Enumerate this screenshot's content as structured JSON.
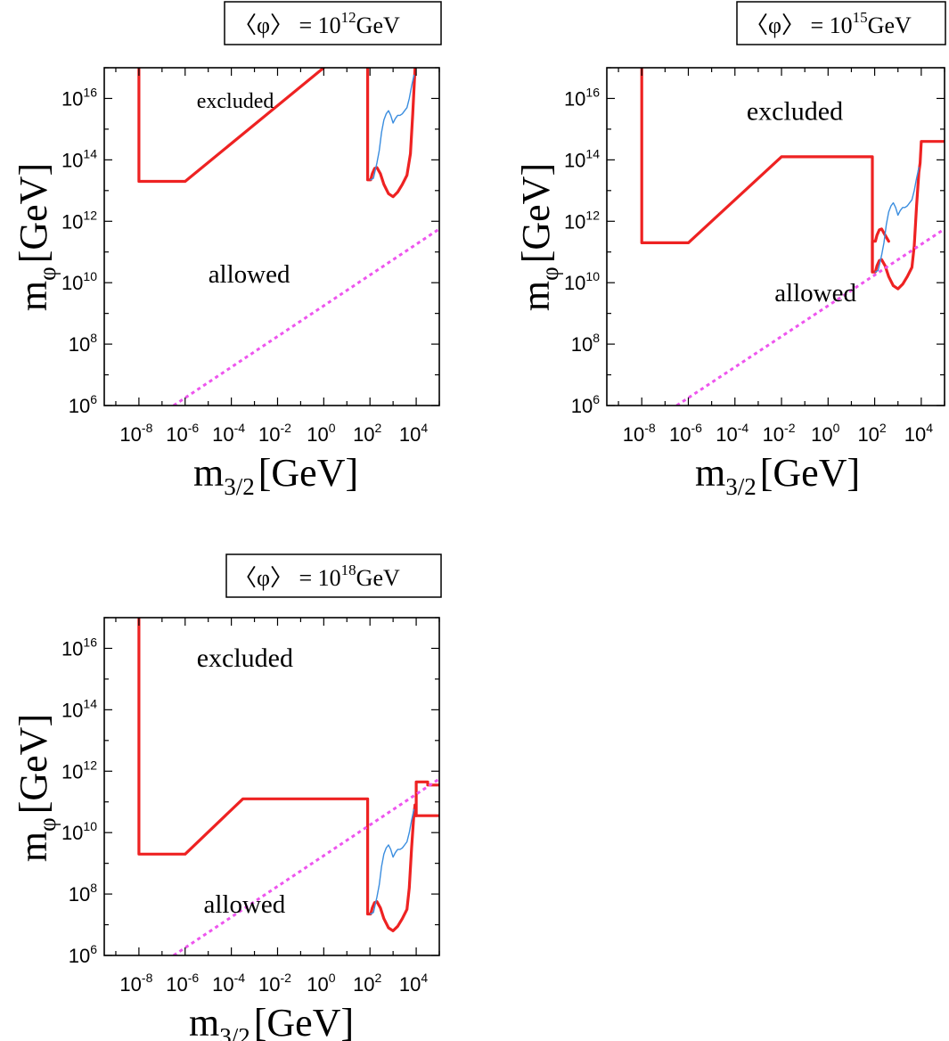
{
  "chart_data": [
    {
      "type": "line",
      "title": {
        "prefix": "〈φ〉 = 10",
        "exponent": "12",
        "suffix": "GeV"
      },
      "xlabel": {
        "main": "m",
        "sub": "3/2",
        "unit": "[GeV]"
      },
      "ylabel": {
        "main": "m",
        "sub": "φ",
        "unit": "[GeV]"
      },
      "x_scale": "log10",
      "y_scale": "log10",
      "xlim_log10": [
        -9.5,
        5
      ],
      "ylim_log10": [
        6,
        17
      ],
      "x_ticks_log10": [
        -8,
        -6,
        -4,
        -2,
        0,
        2,
        4
      ],
      "y_ticks_log10": [
        6,
        8,
        10,
        12,
        14,
        16
      ],
      "annotations": [
        {
          "text": "excluded",
          "at_log10": [
            -5.5,
            15.7
          ],
          "size": "small"
        },
        {
          "text": "allowed",
          "at_log10": [
            -5,
            10
          ]
        }
      ],
      "series": [
        {
          "style": "thick",
          "color": "#ee2222",
          "points_log10": [
            [
              -8,
              17
            ],
            [
              -8,
              13.3
            ],
            [
              -6,
              13.3
            ],
            [
              0,
              17
            ]
          ]
        },
        {
          "style": "thick",
          "color": "#ee2222",
          "points_log10": [
            [
              1.9,
              17
            ],
            [
              1.9,
              13.35
            ],
            [
              2.03,
              13.35
            ],
            [
              2.1,
              13.55
            ],
            [
              2.2,
              13.72
            ],
            [
              2.3,
              13.75
            ],
            [
              2.45,
              13.55
            ],
            [
              2.6,
              13.2
            ],
            [
              2.8,
              12.9
            ],
            [
              3,
              12.8
            ],
            [
              3.2,
              12.95
            ],
            [
              3.4,
              13.2
            ],
            [
              3.6,
              13.5
            ],
            [
              3.75,
              14.2
            ],
            [
              3.85,
              15.5
            ],
            [
              3.95,
              17
            ]
          ]
        },
        {
          "style": "thin",
          "color": "#3a8ddf",
          "points_log10": [
            [
              2.03,
              13.35
            ],
            [
              2.15,
              13.4
            ],
            [
              2.3,
              13.9
            ],
            [
              2.4,
              14.3
            ],
            [
              2.5,
              14.9
            ],
            [
              2.6,
              15.3
            ],
            [
              2.7,
              15.5
            ],
            [
              2.8,
              15.6
            ],
            [
              2.9,
              15.45
            ],
            [
              3.0,
              15.2
            ],
            [
              3.1,
              15.35
            ],
            [
              3.2,
              15.45
            ],
            [
              3.3,
              15.45
            ],
            [
              3.4,
              15.5
            ],
            [
              3.5,
              15.6
            ],
            [
              3.6,
              15.7
            ],
            [
              3.7,
              16.0
            ],
            [
              3.8,
              16.4
            ],
            [
              3.9,
              16.75
            ]
          ]
        },
        {
          "style": "dotted",
          "color": "#ee55ee",
          "points_log10": [
            [
              -6.5,
              6
            ],
            [
              5,
              11.75
            ]
          ]
        }
      ]
    },
    {
      "type": "line",
      "title": {
        "prefix": "〈φ〉 = 10",
        "exponent": "15",
        "suffix": "GeV"
      },
      "xlabel": {
        "main": "m",
        "sub": "3/2",
        "unit": "[GeV]"
      },
      "ylabel": {
        "main": "m",
        "sub": "φ",
        "unit": "[GeV]"
      },
      "x_scale": "log10",
      "y_scale": "log10",
      "xlim_log10": [
        -9.5,
        5
      ],
      "ylim_log10": [
        6,
        17
      ],
      "x_ticks_log10": [
        -8,
        -6,
        -4,
        -2,
        0,
        2,
        4
      ],
      "y_ticks_log10": [
        6,
        8,
        10,
        12,
        14,
        16
      ],
      "annotations": [
        {
          "text": "excluded",
          "at_log10": [
            -3.5,
            15.3
          ],
          "size": "large"
        },
        {
          "text": "allowed",
          "at_log10": [
            -2.3,
            9.4
          ],
          "size": "large"
        }
      ],
      "series": [
        {
          "style": "thick",
          "color": "#ee2222",
          "points_log10": [
            [
              -8,
              17
            ],
            [
              -8,
              11.3
            ],
            [
              -6,
              11.3
            ],
            [
              -2,
              14.1
            ],
            [
              1.9,
              14.1
            ],
            [
              1.9,
              10.35
            ],
            [
              2.03,
              10.35
            ],
            [
              2.1,
              10.55
            ],
            [
              2.2,
              10.72
            ],
            [
              2.3,
              10.75
            ],
            [
              2.45,
              10.55
            ],
            [
              2.6,
              10.2
            ],
            [
              2.8,
              9.9
            ],
            [
              3,
              9.8
            ],
            [
              3.2,
              9.95
            ],
            [
              3.4,
              10.2
            ],
            [
              3.6,
              10.5
            ],
            [
              3.7,
              11.2
            ],
            [
              3.8,
              12.5
            ],
            [
              3.9,
              13.6
            ],
            [
              3.95,
              13.9
            ],
            [
              4,
              14.6
            ],
            [
              5,
              14.6
            ]
          ]
        },
        {
          "style": "thick",
          "color": "#ee2222",
          "points_log10": [
            [
              1.9,
              10.35
            ],
            [
              1.9,
              11.35
            ],
            [
              2.03,
              11.35
            ],
            [
              2.1,
              11.55
            ],
            [
              2.2,
              11.72
            ],
            [
              2.3,
              11.75
            ],
            [
              2.45,
              11.55
            ],
            [
              2.6,
              11.35
            ]
          ]
        },
        {
          "style": "thin",
          "color": "#3a8ddf",
          "points_log10": [
            [
              2.03,
              10.35
            ],
            [
              2.15,
              10.4
            ],
            [
              2.3,
              10.9
            ],
            [
              2.4,
              11.3
            ],
            [
              2.5,
              11.9
            ],
            [
              2.6,
              12.3
            ],
            [
              2.7,
              12.5
            ],
            [
              2.8,
              12.6
            ],
            [
              2.9,
              12.45
            ],
            [
              3.0,
              12.2
            ],
            [
              3.1,
              12.35
            ],
            [
              3.2,
              12.45
            ],
            [
              3.3,
              12.45
            ],
            [
              3.4,
              12.5
            ],
            [
              3.5,
              12.6
            ],
            [
              3.6,
              12.7
            ],
            [
              3.7,
              13.0
            ],
            [
              3.8,
              13.4
            ],
            [
              3.9,
              13.75
            ]
          ]
        },
        {
          "style": "dotted",
          "color": "#ee55ee",
          "points_log10": [
            [
              -6.5,
              6
            ],
            [
              5,
              11.75
            ]
          ]
        }
      ]
    },
    {
      "type": "line",
      "title": {
        "prefix": "〈φ〉 = 10",
        "exponent": "18",
        "suffix": "GeV"
      },
      "xlabel": {
        "main": "m",
        "sub": "3/2",
        "unit": "[GeV]"
      },
      "ylabel": {
        "main": "m",
        "sub": "φ",
        "unit": "[GeV]"
      },
      "x_scale": "log10",
      "y_scale": "log10",
      "xlim_log10": [
        -9.5,
        5
      ],
      "ylim_log10": [
        6,
        17
      ],
      "x_ticks_log10": [
        -8,
        -6,
        -4,
        -2,
        0,
        2,
        4
      ],
      "y_ticks_log10": [
        6,
        8,
        10,
        12,
        14,
        16
      ],
      "annotations": [
        {
          "text": "excluded",
          "at_log10": [
            -5.5,
            15.4
          ],
          "size": "large"
        },
        {
          "text": "allowed",
          "at_log10": [
            -5.2,
            7.4
          ],
          "size": "large"
        }
      ],
      "series": [
        {
          "style": "thick",
          "color": "#ee2222",
          "points_log10": [
            [
              -8,
              17
            ],
            [
              -8,
              9.3
            ],
            [
              -6,
              9.3
            ],
            [
              -3.5,
              11.1
            ],
            [
              1.9,
              11.1
            ],
            [
              1.9,
              7.35
            ],
            [
              2.03,
              7.35
            ],
            [
              2.1,
              7.55
            ],
            [
              2.2,
              7.72
            ],
            [
              2.3,
              7.75
            ],
            [
              2.45,
              7.55
            ],
            [
              2.6,
              7.2
            ],
            [
              2.8,
              6.9
            ],
            [
              3,
              6.8
            ],
            [
              3.2,
              6.95
            ],
            [
              3.4,
              7.2
            ],
            [
              3.6,
              7.5
            ],
            [
              3.7,
              8.2
            ],
            [
              3.8,
              9.5
            ],
            [
              3.9,
              10.6
            ],
            [
              3.95,
              10.9
            ],
            [
              4,
              10.55
            ],
            [
              4,
              11.65
            ],
            [
              4.5,
              11.65
            ],
            [
              4.5,
              11.55
            ],
            [
              5,
              11.55
            ]
          ]
        },
        {
          "style": "thick",
          "color": "#ee2222",
          "points_log10": [
            [
              3.95,
              10.9
            ],
            [
              3.95,
              10.55
            ],
            [
              5,
              10.55
            ]
          ]
        },
        {
          "style": "thin",
          "color": "#3a8ddf",
          "points_log10": [
            [
              2.03,
              7.35
            ],
            [
              2.15,
              7.4
            ],
            [
              2.3,
              7.9
            ],
            [
              2.4,
              8.3
            ],
            [
              2.5,
              8.9
            ],
            [
              2.6,
              9.3
            ],
            [
              2.7,
              9.5
            ],
            [
              2.8,
              9.6
            ],
            [
              2.9,
              9.45
            ],
            [
              3.0,
              9.2
            ],
            [
              3.1,
              9.35
            ],
            [
              3.2,
              9.45
            ],
            [
              3.3,
              9.45
            ],
            [
              3.4,
              9.5
            ],
            [
              3.5,
              9.6
            ],
            [
              3.6,
              9.7
            ],
            [
              3.7,
              10.0
            ],
            [
              3.8,
              10.4
            ],
            [
              3.9,
              10.75
            ]
          ]
        },
        {
          "style": "dotted",
          "color": "#ee55ee",
          "points_log10": [
            [
              -6.5,
              6
            ],
            [
              5,
              11.75
            ]
          ]
        }
      ]
    }
  ]
}
